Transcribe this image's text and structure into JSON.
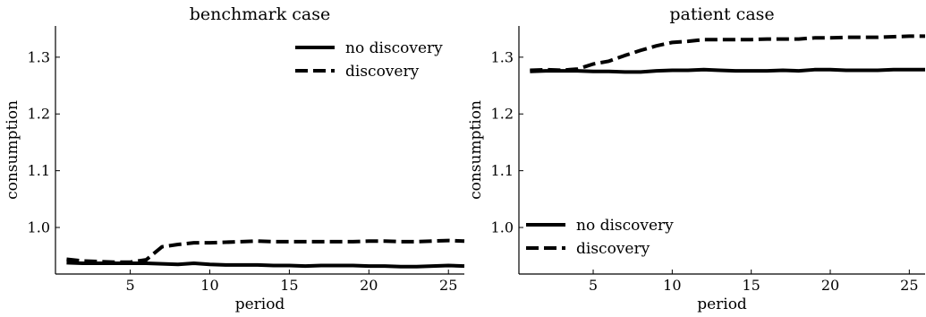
{
  "chart_data": [
    {
      "type": "line",
      "title": "benchmark case",
      "xlabel": "period",
      "ylabel": "consumption",
      "xlim": [
        0.3,
        26
      ],
      "ylim": [
        0.918,
        1.355
      ],
      "xticks": [
        5,
        10,
        15,
        20,
        25
      ],
      "xtick_labels": [
        "5",
        "10",
        "15",
        "20",
        "25"
      ],
      "yticks": [
        1.0,
        1.1,
        1.2,
        1.3
      ],
      "ytick_labels": [
        "1.0",
        "1.1",
        "1.2",
        "1.3"
      ],
      "grid": false,
      "legend_position": "top-right",
      "x": [
        1,
        2,
        3,
        4,
        5,
        6,
        7,
        8,
        9,
        10,
        11,
        12,
        13,
        14,
        15,
        16,
        17,
        18,
        19,
        20,
        21,
        22,
        23,
        24,
        25,
        26
      ],
      "series": [
        {
          "name": "no discovery",
          "style": "solid",
          "values": [
            0.938,
            0.937,
            0.937,
            0.937,
            0.937,
            0.937,
            0.936,
            0.935,
            0.937,
            0.935,
            0.934,
            0.934,
            0.934,
            0.933,
            0.933,
            0.932,
            0.933,
            0.933,
            0.933,
            0.932,
            0.932,
            0.931,
            0.931,
            0.932,
            0.933,
            0.932
          ]
        },
        {
          "name": "discovery",
          "style": "dashed",
          "values": [
            0.944,
            0.941,
            0.94,
            0.939,
            0.939,
            0.943,
            0.966,
            0.97,
            0.973,
            0.973,
            0.974,
            0.975,
            0.976,
            0.975,
            0.975,
            0.975,
            0.975,
            0.975,
            0.975,
            0.976,
            0.976,
            0.975,
            0.975,
            0.976,
            0.977,
            0.976
          ]
        }
      ]
    },
    {
      "type": "line",
      "title": "patient case",
      "xlabel": "period",
      "ylabel": "consumption",
      "xlim": [
        0.3,
        26
      ],
      "ylim": [
        0.918,
        1.355
      ],
      "xticks": [
        5,
        10,
        15,
        20,
        25
      ],
      "xtick_labels": [
        "5",
        "10",
        "15",
        "20",
        "25"
      ],
      "yticks": [
        1.0,
        1.1,
        1.2,
        1.3
      ],
      "ytick_labels": [
        "1.0",
        "1.1",
        "1.2",
        "1.3"
      ],
      "grid": false,
      "legend_position": "bottom-left",
      "x": [
        1,
        2,
        3,
        4,
        5,
        6,
        7,
        8,
        9,
        10,
        11,
        12,
        13,
        14,
        15,
        16,
        17,
        18,
        19,
        20,
        21,
        22,
        23,
        24,
        25,
        26
      ],
      "series": [
        {
          "name": "no discovery",
          "style": "solid",
          "values": [
            1.275,
            1.276,
            1.276,
            1.276,
            1.275,
            1.275,
            1.274,
            1.274,
            1.276,
            1.277,
            1.277,
            1.278,
            1.277,
            1.276,
            1.276,
            1.276,
            1.277,
            1.276,
            1.278,
            1.278,
            1.277,
            1.277,
            1.277,
            1.278,
            1.278,
            1.278
          ]
        },
        {
          "name": "discovery",
          "style": "dashed",
          "values": [
            1.277,
            1.278,
            1.277,
            1.279,
            1.288,
            1.293,
            1.303,
            1.312,
            1.32,
            1.326,
            1.328,
            1.331,
            1.331,
            1.331,
            1.331,
            1.332,
            1.332,
            1.332,
            1.334,
            1.334,
            1.335,
            1.335,
            1.335,
            1.336,
            1.337,
            1.337
          ]
        }
      ]
    }
  ]
}
